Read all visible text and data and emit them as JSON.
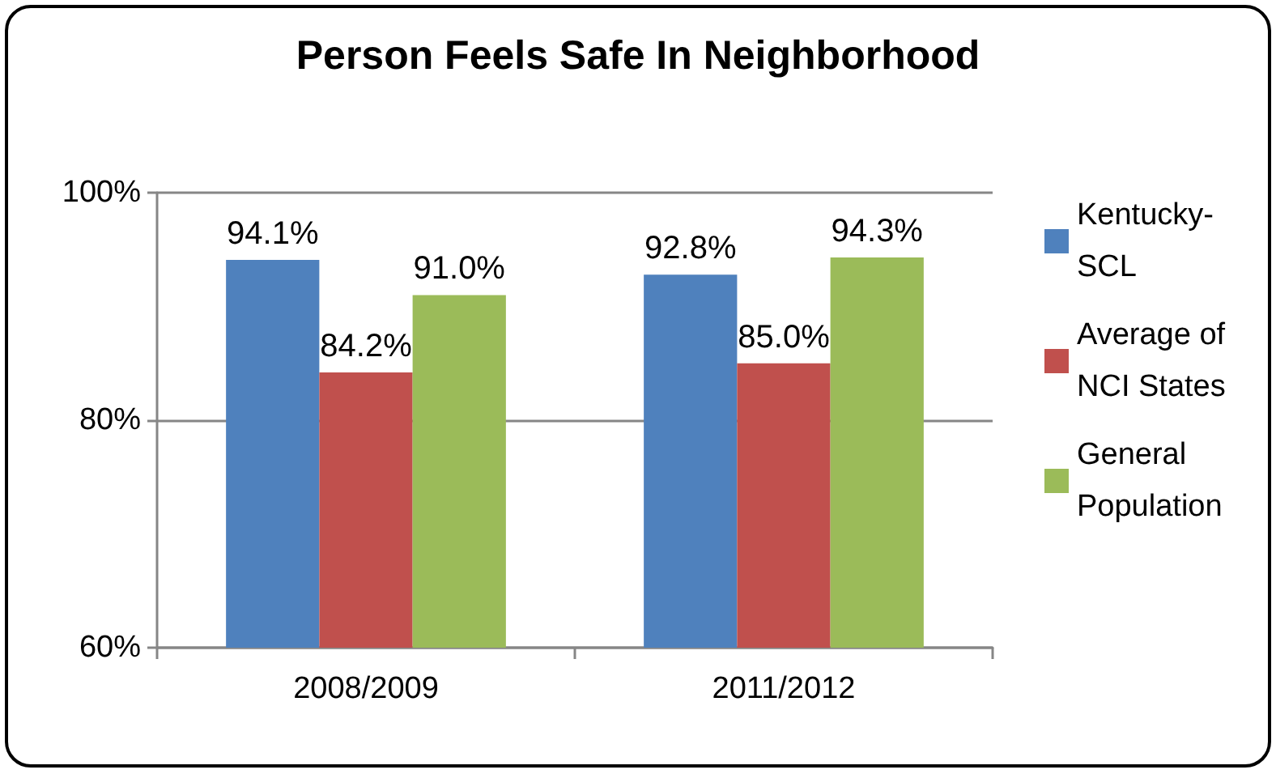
{
  "chart_data": {
    "type": "bar",
    "title": "Person Feels Safe In Neighborhood",
    "categories": [
      "2008/2009",
      "2011/2012"
    ],
    "series": [
      {
        "name": "Kentucky-SCL",
        "color": "#4f81bd",
        "values": [
          94.1,
          92.8
        ],
        "value_labels": [
          "94.1%",
          "92.8%"
        ]
      },
      {
        "name": "Average of NCI States",
        "color": "#c0504d",
        "values": [
          84.2,
          85.0
        ],
        "value_labels": [
          "84.2%",
          "85.0%"
        ]
      },
      {
        "name": "General Population",
        "color": "#9bbb59",
        "values": [
          91.0,
          94.3
        ],
        "value_labels": [
          "91.0%",
          "94.3%"
        ]
      }
    ],
    "ylim": [
      60,
      100
    ],
    "yticks": [
      {
        "value": 60,
        "label": "60%"
      },
      {
        "value": 80,
        "label": "80%"
      },
      {
        "value": 100,
        "label": "100%"
      }
    ],
    "grid": "y",
    "legend": "right"
  }
}
